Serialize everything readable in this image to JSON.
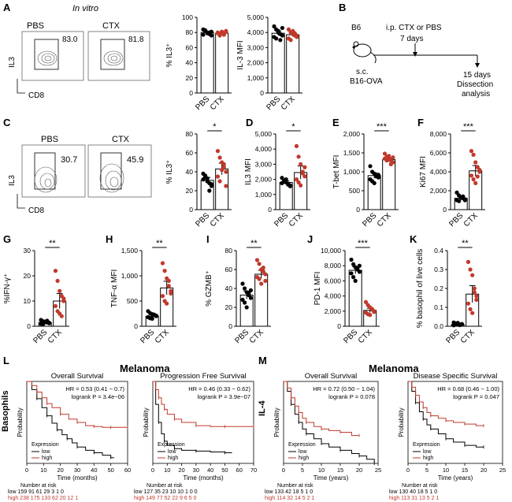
{
  "panels": {
    "A": {
      "letter": "A",
      "title": "In vitro",
      "flow": [
        {
          "label": "PBS",
          "pct": "83.0"
        },
        {
          "label": "CTX",
          "pct": "81.8"
        }
      ],
      "y_axis": "IL3",
      "x_axis": "CD8"
    },
    "B": {
      "letter": "B",
      "mouse": "B6",
      "treatment": "i.p. CTX or PBS",
      "day7": "7 days",
      "injection": "s.c.",
      "tumor": "B16-OVA",
      "day15": "15 days",
      "dissection": "Dissection",
      "analysis": "analysis"
    },
    "C": {
      "letter": "C",
      "flow": [
        {
          "label": "PBS",
          "pct": "30.7"
        },
        {
          "label": "CTX",
          "pct": "45.9"
        }
      ],
      "y_axis": "IL3",
      "x_axis": "CD8"
    },
    "D": {
      "letter": "D"
    },
    "E": {
      "letter": "E"
    },
    "F": {
      "letter": "F"
    },
    "G": {
      "letter": "G"
    },
    "H": {
      "letter": "H"
    },
    "I": {
      "letter": "I"
    },
    "J": {
      "letter": "J"
    },
    "K": {
      "letter": "K"
    },
    "L": {
      "letter": "L",
      "heading": "Melanoma",
      "gene": "Basophils",
      "plots": [
        {
          "title": "Overall Survival",
          "hr": "HR = 0.53 (0.41 − 0.7)",
          "logrank": "logrank P = 3.4e−06",
          "xlabel": "Time (months)",
          "ylabel": "Probability",
          "ticks": [
            "0",
            "10",
            "20",
            "30",
            "40",
            "50",
            "60"
          ],
          "legend_title": "Expression",
          "low": "low",
          "high": "high",
          "risk_label": "Number at risk",
          "risk_low": "low  159  91  61  29  3  1  0",
          "risk_high": "high 238 175 133  62  20  12  1"
        },
        {
          "title": "Progression Free Survival",
          "hr": "HR = 0.46 (0.33 − 0.62)",
          "logrank": "logrank P = 3.9e−07",
          "xlabel": "Time (months)",
          "ylabel": "Probability",
          "ticks": [
            "0",
            "10",
            "20",
            "30",
            "40",
            "50",
            "60",
            "70"
          ],
          "legend_title": "Expression",
          "low": "low",
          "high": "high",
          "risk_label": "Number at risk",
          "risk_low": "low  127  35  23  10  10  1  0  0",
          "risk_high": "high 149  77  52  22  9  6  5  0"
        }
      ]
    },
    "M": {
      "letter": "M",
      "heading": "Melanoma",
      "gene": "IL-4",
      "plots": [
        {
          "title": "Overall Survival",
          "hr": "HR = 0.72 (0.50 − 1.04)",
          "logrank": "logrank P = 0.078",
          "xlabel": "Time (years)",
          "ylabel": "Probability",
          "ticks": [
            "0",
            "5",
            "10",
            "15",
            "20",
            "25"
          ],
          "legend_title": "Expression",
          "low": "low",
          "high": "high",
          "risk_label": "Number at risk",
          "risk_low": "low  133  42  18  5  1  0",
          "risk_high": "high 114  32  14  5  2  1"
        },
        {
          "title": "Disease Specific Survival",
          "hr": "HR = 0.68 (0.46 − 1.00)",
          "logrank": "logrank P = 0.047",
          "xlabel": "Time (years)",
          "ylabel": "Probability",
          "ticks": [
            "0",
            "5",
            "10",
            "15",
            "20",
            "25"
          ],
          "legend_title": "Expression",
          "low": "low",
          "high": "high",
          "risk_label": "Number at risk",
          "risk_low": "low  130  40  18  5  1  0",
          "risk_high": "high 113  31  13  5  2  1"
        }
      ]
    }
  },
  "colors": {
    "pbs": "#000000",
    "ctx": "#c0392b",
    "low": "#000000",
    "high": "#c0392b"
  },
  "chart_data": [
    {
      "panel": "A",
      "type": "bar",
      "ylabel": "% IL3⁺",
      "categories": [
        "PBS",
        "CTX"
      ],
      "ylim": [
        0,
        100
      ],
      "ticks": [
        "0",
        "20",
        "40",
        "60",
        "80",
        "100"
      ],
      "series": [
        {
          "values": [
            80,
            79
          ]
        }
      ],
      "points": [
        [
          84,
          82,
          80,
          78,
          81,
          77,
          83,
          79,
          80,
          76
        ],
        [
          80,
          78,
          81,
          77,
          82,
          79,
          76,
          80,
          78,
          81
        ]
      ]
    },
    {
      "panel": "A",
      "type": "bar",
      "ylabel": "IL-3 MFI",
      "categories": [
        "PBS",
        "CTX"
      ],
      "ylim": [
        0,
        5000
      ],
      "ticks": [
        "0",
        "1,000",
        "2,000",
        "3,000",
        "4,000",
        "5,000"
      ],
      "series": [
        {
          "values": [
            3950,
            3850
          ]
        }
      ],
      "points": [
        [
          4400,
          4200,
          4000,
          3900,
          3800,
          3700,
          3600,
          4100,
          3500,
          4300
        ],
        [
          4200,
          4000,
          3900,
          3800,
          3700,
          3600,
          3500,
          4100,
          3950,
          3800
        ]
      ]
    },
    {
      "panel": "C",
      "type": "bar",
      "ylabel": "% IL3⁺",
      "categories": [
        "PBS",
        "CTX"
      ],
      "ylim": [
        0,
        80
      ],
      "ticks": [
        "0",
        "20",
        "40",
        "60",
        "80"
      ],
      "sig": "*",
      "series": [
        {
          "values": [
            31,
            43
          ]
        }
      ],
      "points": [
        [
          38,
          35,
          30,
          28,
          25,
          32,
          36,
          33,
          20,
          27
        ],
        [
          62,
          55,
          50,
          45,
          40,
          35,
          30,
          42,
          48,
          25
        ]
      ]
    },
    {
      "panel": "D",
      "type": "bar",
      "ylabel": "IL3 MFI",
      "categories": [
        "PBS",
        "CTX"
      ],
      "ylim": [
        0,
        5000
      ],
      "ticks": [
        "0",
        "1,000",
        "2,000",
        "3,000",
        "4,000",
        "5,000"
      ],
      "sig": "*",
      "series": [
        {
          "values": [
            1800,
            2450
          ]
        }
      ],
      "points": [
        [
          2100,
          1900,
          1800,
          1700,
          1600,
          1750,
          1850,
          2000,
          1650,
          1550
        ],
        [
          4200,
          3500,
          3000,
          2500,
          2200,
          2000,
          1800,
          1600,
          2400,
          2800
        ]
      ]
    },
    {
      "panel": "E",
      "type": "bar",
      "ylabel": "T-bet MFI",
      "categories": [
        "PBS",
        "CTX"
      ],
      "ylim": [
        0,
        2000
      ],
      "ticks": [
        "0",
        "500",
        "1,000",
        "1,500",
        "2,000"
      ],
      "sig": "***",
      "series": [
        {
          "values": [
            900,
            1320
          ]
        }
      ],
      "points": [
        [
          1150,
          1000,
          950,
          900,
          850,
          800,
          750,
          700,
          880,
          920
        ],
        [
          1480,
          1400,
          1350,
          1300,
          1250,
          1350,
          1300,
          1420,
          1200,
          1380
        ]
      ]
    },
    {
      "panel": "F",
      "type": "bar",
      "ylabel": "Ki67 MFI",
      "categories": [
        "PBS",
        "CTX"
      ],
      "ylim": [
        0,
        8000
      ],
      "ticks": [
        "0",
        "2,000",
        "4,000",
        "6,000",
        "8,000"
      ],
      "sig": "***",
      "series": [
        {
          "values": [
            1200,
            4100
          ]
        }
      ],
      "points": [
        [
          1800,
          1500,
          1300,
          1200,
          1100,
          1000,
          900,
          1250,
          1400,
          1000
        ],
        [
          6200,
          5800,
          5000,
          4500,
          4000,
          3600,
          3200,
          2800,
          3500,
          4200
        ]
      ]
    },
    {
      "panel": "G",
      "type": "bar",
      "ylabel": "%IFN-γ⁺",
      "categories": [
        "PBS",
        "CTX"
      ],
      "ylim": [
        0,
        30
      ],
      "ticks": [
        "0",
        "10",
        "20",
        "30"
      ],
      "sig": "**",
      "series": [
        {
          "values": [
            1.5,
            10
          ]
        }
      ],
      "points": [
        [
          2.5,
          2,
          1.8,
          1.5,
          1.2,
          1,
          0.8,
          1.6,
          2.2,
          1.4
        ],
        [
          22,
          18,
          14,
          12,
          10,
          8,
          6,
          5,
          4,
          11
        ]
      ]
    },
    {
      "panel": "H",
      "type": "bar",
      "ylabel": "TNF-α MFI",
      "categories": [
        "PBS",
        "CTX"
      ],
      "ylim": [
        0,
        1500
      ],
      "ticks": [
        "0",
        "500",
        "1,000",
        "1,500"
      ],
      "sig": "**",
      "series": [
        {
          "values": [
            200,
            760
          ]
        }
      ],
      "points": [
        [
          300,
          260,
          240,
          220,
          200,
          180,
          160,
          150,
          230,
          210
        ],
        [
          1250,
          1100,
          950,
          800,
          700,
          600,
          500,
          450,
          900,
          650
        ]
      ]
    },
    {
      "panel": "I",
      "type": "bar",
      "ylabel": "% GZMB⁺",
      "categories": [
        "PBS",
        "CTX"
      ],
      "ylim": [
        0,
        80
      ],
      "ticks": [
        "0",
        "20",
        "40",
        "60",
        "80"
      ],
      "sig": "**",
      "series": [
        {
          "values": [
            33,
            55
          ]
        }
      ],
      "points": [
        [
          45,
          40,
          36,
          33,
          30,
          28,
          25,
          20,
          35,
          38
        ],
        [
          70,
          66,
          60,
          58,
          55,
          52,
          50,
          45,
          62,
          48
        ]
      ]
    },
    {
      "panel": "J",
      "type": "bar",
      "ylabel": "PD-1 MFI",
      "categories": [
        "PBS",
        "CTX"
      ],
      "ylim": [
        0,
        10000
      ],
      "ticks": [
        "0",
        "2,000",
        "4,000",
        "6,000",
        "8,000",
        "10,000"
      ],
      "sig": "***",
      "series": [
        {
          "values": [
            7400,
            2100
          ]
        }
      ],
      "points": [
        [
          8800,
          8200,
          7800,
          7500,
          7200,
          7000,
          6500,
          6000,
          7700,
          8000
        ],
        [
          3200,
          2800,
          2500,
          2200,
          2000,
          1800,
          1600,
          1500,
          2300,
          1900
        ]
      ]
    },
    {
      "panel": "K",
      "type": "bar",
      "ylabel": "% basophil of live cells",
      "categories": [
        "PBS",
        "CTX"
      ],
      "ylim": [
        0,
        0.4
      ],
      "ticks": [
        "0.0",
        "0.1",
        "0.2",
        "0.3",
        "0.4"
      ],
      "sig": "**",
      "series": [
        {
          "values": [
            0.01,
            0.17
          ]
        }
      ],
      "points": [
        [
          0.02,
          0.015,
          0.01,
          0.008,
          0.012,
          0.005,
          0.01,
          0.018,
          0.006,
          0.011
        ],
        [
          0.34,
          0.3,
          0.27,
          0.2,
          0.16,
          0.12,
          0.09,
          0.07,
          0.18,
          0.14
        ]
      ]
    },
    {
      "panel": "L",
      "type": "line",
      "title": "Overall Survival",
      "xlabel": "Time (months)",
      "ylabel": "Probability",
      "xlim": [
        0,
        60
      ],
      "ylim": [
        0,
        1
      ],
      "series": [
        {
          "name": "low",
          "x": [
            0,
            3,
            6,
            9,
            12,
            15,
            18,
            21,
            24,
            27,
            30,
            35,
            40,
            45,
            50,
            52
          ],
          "y": [
            1,
            0.9,
            0.79,
            0.68,
            0.58,
            0.49,
            0.41,
            0.35,
            0.3,
            0.25,
            0.2,
            0.16,
            0.13,
            0.1,
            0.07,
            0.07
          ]
        },
        {
          "name": "high",
          "x": [
            0,
            3,
            6,
            9,
            12,
            15,
            20,
            25,
            30,
            35,
            40,
            45,
            50,
            55,
            60
          ],
          "y": [
            1,
            0.95,
            0.87,
            0.8,
            0.73,
            0.68,
            0.6,
            0.54,
            0.5,
            0.46,
            0.45,
            0.44,
            0.44,
            0.44,
            0.44
          ]
        }
      ]
    },
    {
      "panel": "L",
      "type": "line",
      "title": "Progression Free Survival",
      "xlabel": "Time (months)",
      "ylabel": "Probability",
      "xlim": [
        0,
        70
      ],
      "ylim": [
        0,
        1
      ],
      "series": [
        {
          "name": "low",
          "x": [
            0,
            2,
            4,
            6,
            8,
            10,
            15,
            20,
            30,
            40,
            50,
            55
          ],
          "y": [
            1,
            0.72,
            0.5,
            0.36,
            0.27,
            0.22,
            0.18,
            0.16,
            0.15,
            0.14,
            0.13,
            0.13
          ]
        },
        {
          "name": "high",
          "x": [
            0,
            2,
            4,
            6,
            8,
            10,
            15,
            20,
            30,
            40,
            50,
            60,
            70
          ],
          "y": [
            1,
            0.9,
            0.8,
            0.72,
            0.66,
            0.6,
            0.54,
            0.5,
            0.46,
            0.45,
            0.45,
            0.45,
            0.45
          ]
        }
      ]
    },
    {
      "panel": "M",
      "type": "line",
      "title": "Overall Survival",
      "xlabel": "Time (years)",
      "ylabel": "Probability",
      "xlim": [
        0,
        25
      ],
      "ylim": [
        0,
        1
      ],
      "series": [
        {
          "name": "low",
          "x": [
            0,
            1,
            2,
            3,
            4,
            5,
            6,
            8,
            10,
            12,
            15,
            18,
            20,
            22,
            24
          ],
          "y": [
            1,
            0.88,
            0.72,
            0.6,
            0.5,
            0.42,
            0.36,
            0.3,
            0.24,
            0.2,
            0.16,
            0.12,
            0.09,
            0.05,
            0
          ]
        },
        {
          "name": "high",
          "x": [
            0,
            1,
            2,
            3,
            4,
            5,
            6,
            8,
            10,
            12,
            15,
            18,
            20
          ],
          "y": [
            1,
            0.92,
            0.8,
            0.7,
            0.62,
            0.55,
            0.5,
            0.45,
            0.42,
            0.4,
            0.38,
            0.34,
            0.34
          ]
        }
      ]
    },
    {
      "panel": "M",
      "type": "line",
      "title": "Disease Specific Survival",
      "xlabel": "Time (years)",
      "ylabel": "Probability",
      "xlim": [
        0,
        25
      ],
      "ylim": [
        0,
        1
      ],
      "series": [
        {
          "name": "low",
          "x": [
            0,
            1,
            2,
            3,
            4,
            5,
            6,
            8,
            10,
            12,
            15,
            18,
            20
          ],
          "y": [
            1,
            0.88,
            0.74,
            0.63,
            0.54,
            0.47,
            0.42,
            0.36,
            0.3,
            0.26,
            0.22,
            0.2,
            0.2
          ]
        },
        {
          "name": "high",
          "x": [
            0,
            1,
            2,
            3,
            4,
            5,
            6,
            8,
            10,
            12,
            15,
            18,
            20
          ],
          "y": [
            1,
            0.93,
            0.83,
            0.75,
            0.68,
            0.62,
            0.58,
            0.55,
            0.52,
            0.5,
            0.48,
            0.46,
            0.46
          ]
        }
      ]
    }
  ]
}
